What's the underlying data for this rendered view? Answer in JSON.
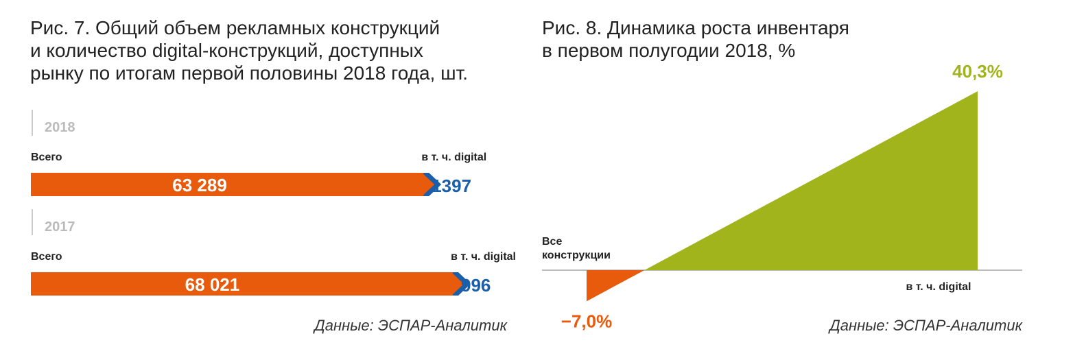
{
  "chart_data": [
    {
      "type": "bar",
      "title": [
        "Рис. 7. Общий объем рекламных конструкций",
        "и количество digital-конструкций, доступных",
        "рынку по итогам первой половины 2018 года, шт."
      ],
      "categories": [
        "2018",
        "2017"
      ],
      "series": [
        {
          "name": "Всего",
          "color": "#e85a0c",
          "values": [
            63289,
            68021
          ],
          "value_labels": [
            "63 289",
            "68 021"
          ]
        },
        {
          "name": "в т. ч. digital",
          "color": "#1b5faa",
          "values": [
            1397,
            996
          ]
        }
      ],
      "source": "Данные: ЭСПАР-Аналитик"
    },
    {
      "type": "area",
      "title": [
        "Рис. 8. Динамика роста инвентаря",
        "в первом полугодии 2018, %"
      ],
      "categories": [
        "Все конструкции",
        "в т. ч. digital"
      ],
      "values": [
        -7.0,
        40.3
      ],
      "value_labels": [
        "−7,0%",
        "40,3%"
      ],
      "colors": [
        "#e85a0c",
        "#a2b41c"
      ],
      "source": "Данные: ЭСПАР-Аналитик"
    }
  ]
}
